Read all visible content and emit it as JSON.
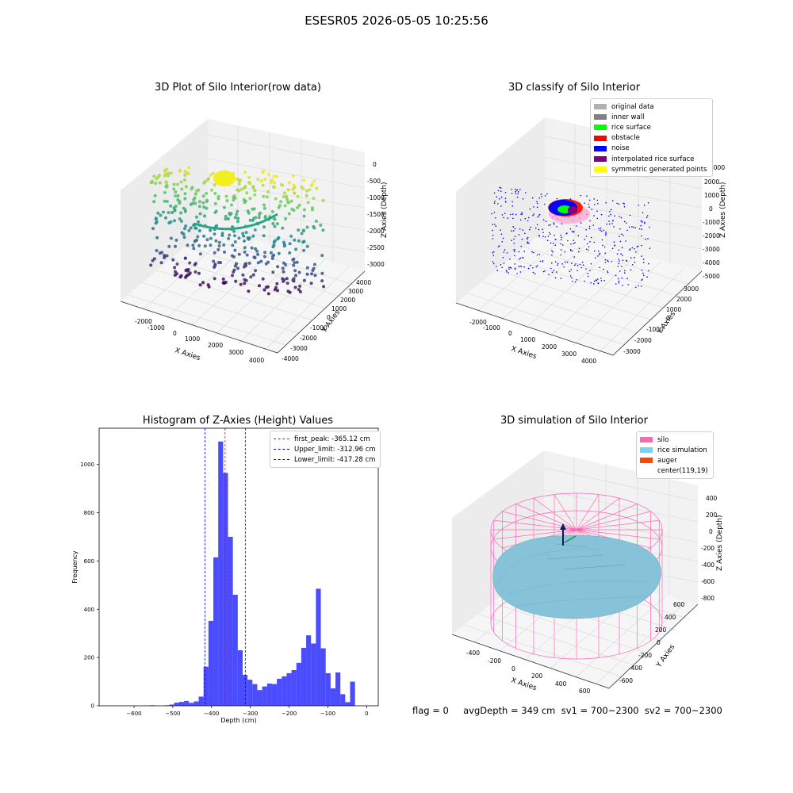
{
  "page": {
    "suptitle": "ESESR05 2026-05-05 10:25:56",
    "footer": "flag = 0     avgDepth = 349 cm  sv1 = 700~2300  sv2 = 700~2300"
  },
  "panels": {
    "raw": {
      "title": "3D Plot of Silo Interior(row data)",
      "xlabel": "X Axies",
      "ylabel": "Y Axies",
      "zlabel": "Z Axies (Depth)",
      "xticks": [
        "-2000",
        "-1000",
        "0",
        "1000",
        "2000",
        "3000",
        "4000"
      ],
      "yticks": [
        "-4000",
        "-3000",
        "-2000",
        "-1000",
        "0",
        "1000",
        "2000",
        "3000",
        "4000"
      ],
      "zticks": [
        "0",
        "-500",
        "-1000",
        "-1500",
        "-2000",
        "-2500",
        "-3000"
      ]
    },
    "classify": {
      "title": "3D classify of Silo Interior",
      "xlabel": "X Axies",
      "ylabel": "Y Axies",
      "zlabel": "Z Axies (Depth)",
      "xticks": [
        "-2000",
        "-1000",
        "0",
        "1000",
        "2000",
        "3000",
        "4000"
      ],
      "yticks": [
        "-3000",
        "-2000",
        "-1000",
        "0",
        "1000",
        "2000",
        "3000"
      ],
      "zticks": [
        "3000",
        "2000",
        "1000",
        "0",
        "-1000",
        "-2000",
        "-3000",
        "-4000",
        "-5000"
      ],
      "legend": [
        {
          "label": "original data",
          "color": "#b0b0b0"
        },
        {
          "label": "inner wall",
          "color": "#808080"
        },
        {
          "label": "rice surface",
          "color": "#00ff00"
        },
        {
          "label": "obstacle",
          "color": "#ff0000"
        },
        {
          "label": "noise",
          "color": "#0000ff"
        },
        {
          "label": "interpolated rice surface",
          "color": "#800080"
        },
        {
          "label": "symmetric generated points",
          "color": "#ffff00"
        }
      ]
    },
    "histogram": {
      "title": "Histogram of Z-Axies (Height) Values",
      "xlabel": "Depth (cm)",
      "ylabel": "Frequency",
      "legend": [
        {
          "label": "first_peak: -365.12 cm",
          "color": "#ff0000"
        },
        {
          "label": "Upper_limit: -312.96 cm",
          "color": "#0000ff"
        },
        {
          "label": "Lower_limit: -417.28 cm",
          "color": "#0000ff"
        }
      ]
    },
    "simulation": {
      "title": "3D simulation of Silo Interior",
      "xlabel": "X Axies",
      "ylabel": "Y Axies",
      "zlabel": "Z Axies (Depth)",
      "xticks": [
        "-400",
        "-200",
        "0",
        "200",
        "400",
        "600"
      ],
      "yticks": [
        "-600",
        "-400",
        "-200",
        "0",
        "200",
        "400",
        "600"
      ],
      "zticks": [
        "400",
        "200",
        "0",
        "-200",
        "-400",
        "-600",
        "-800"
      ],
      "legend": [
        {
          "label": "silo",
          "color": "#ff69b4"
        },
        {
          "label": "rice simulation",
          "color": "#87ceeb"
        },
        {
          "label": "auger",
          "color": "#ff4500"
        },
        {
          "label": "center(119,19)",
          "color": "#ffffff"
        }
      ]
    }
  },
  "chart_data": [
    {
      "type": "histogram",
      "title": "Histogram of Z-Axies (Height) Values",
      "xlabel": "Depth (cm)",
      "ylabel": "Frequency",
      "xlim": [
        -690,
        30
      ],
      "ylim": [
        0,
        1150
      ],
      "xticks": [
        -600,
        -500,
        -400,
        -300,
        -200,
        -100,
        0
      ],
      "yticks": [
        0,
        200,
        400,
        600,
        800,
        1000
      ],
      "bar_color": "#0000ff",
      "bins": [
        {
          "x0": -660,
          "x1": -647.4,
          "count": 0
        },
        {
          "x0": -647.4,
          "x1": -634.8,
          "count": 0
        },
        {
          "x0": -634.8,
          "x1": -622.2,
          "count": 0
        },
        {
          "x0": -622.2,
          "x1": -609.6,
          "count": 0
        },
        {
          "x0": -609.6,
          "x1": -597.0,
          "count": 0
        },
        {
          "x0": -597.0,
          "x1": -584.4,
          "count": 0
        },
        {
          "x0": -584.4,
          "x1": -571.8,
          "count": 0
        },
        {
          "x0": -571.8,
          "x1": -559.2,
          "count": 0
        },
        {
          "x0": -559.2,
          "x1": -546.6,
          "count": 2
        },
        {
          "x0": -546.6,
          "x1": -534.0,
          "count": 0
        },
        {
          "x0": -534.0,
          "x1": -521.4,
          "count": 0
        },
        {
          "x0": -521.4,
          "x1": -508.8,
          "count": 2
        },
        {
          "x0": -508.8,
          "x1": -496.2,
          "count": 5
        },
        {
          "x0": -496.2,
          "x1": -483.6,
          "count": 13
        },
        {
          "x0": -483.6,
          "x1": -471.0,
          "count": 16
        },
        {
          "x0": -471.0,
          "x1": -458.4,
          "count": 20
        },
        {
          "x0": -458.4,
          "x1": -445.8,
          "count": 12
        },
        {
          "x0": -445.8,
          "x1": -433.2,
          "count": 18
        },
        {
          "x0": -433.2,
          "x1": -420.6,
          "count": 38
        },
        {
          "x0": -420.6,
          "x1": -408.0,
          "count": 162
        },
        {
          "x0": -408.0,
          "x1": -395.4,
          "count": 352
        },
        {
          "x0": -395.4,
          "x1": -382.8,
          "count": 615
        },
        {
          "x0": -382.8,
          "x1": -370.2,
          "count": 1095
        },
        {
          "x0": -370.2,
          "x1": -357.6,
          "count": 965
        },
        {
          "x0": -357.6,
          "x1": -345.0,
          "count": 700
        },
        {
          "x0": -345.0,
          "x1": -332.4,
          "count": 460
        },
        {
          "x0": -332.4,
          "x1": -319.8,
          "count": 230
        },
        {
          "x0": -319.8,
          "x1": -307.2,
          "count": 128
        },
        {
          "x0": -307.2,
          "x1": -294.6,
          "count": 108
        },
        {
          "x0": -294.6,
          "x1": -282.0,
          "count": 90
        },
        {
          "x0": -282.0,
          "x1": -269.4,
          "count": 65
        },
        {
          "x0": -269.4,
          "x1": -256.8,
          "count": 80
        },
        {
          "x0": -256.8,
          "x1": -244.2,
          "count": 92
        },
        {
          "x0": -244.2,
          "x1": -231.6,
          "count": 90
        },
        {
          "x0": -231.6,
          "x1": -219.0,
          "count": 112
        },
        {
          "x0": -219.0,
          "x1": -206.4,
          "count": 122
        },
        {
          "x0": -206.4,
          "x1": -193.8,
          "count": 135
        },
        {
          "x0": -193.8,
          "x1": -181.2,
          "count": 148
        },
        {
          "x0": -181.2,
          "x1": -168.6,
          "count": 178
        },
        {
          "x0": -168.6,
          "x1": -156.0,
          "count": 240
        },
        {
          "x0": -156.0,
          "x1": -143.4,
          "count": 292
        },
        {
          "x0": -143.4,
          "x1": -130.8,
          "count": 258
        },
        {
          "x0": -130.8,
          "x1": -118.2,
          "count": 485
        },
        {
          "x0": -118.2,
          "x1": -105.6,
          "count": 238
        },
        {
          "x0": -105.6,
          "x1": -93.0,
          "count": 135
        },
        {
          "x0": -93.0,
          "x1": -80.4,
          "count": 72
        },
        {
          "x0": -80.4,
          "x1": -67.8,
          "count": 138
        },
        {
          "x0": -67.8,
          "x1": -55.2,
          "count": 48
        },
        {
          "x0": -55.2,
          "x1": -42.6,
          "count": 15
        },
        {
          "x0": -42.6,
          "x1": -30.0,
          "count": 100
        }
      ],
      "vlines": [
        {
          "name": "first_peak",
          "x": -365.12,
          "color": "#ff0000"
        },
        {
          "name": "Upper_limit",
          "x": -312.96,
          "color": "#0000ff"
        },
        {
          "name": "Lower_limit",
          "x": -417.28,
          "color": "#0000ff"
        }
      ],
      "legend_position": "upper right"
    }
  ]
}
